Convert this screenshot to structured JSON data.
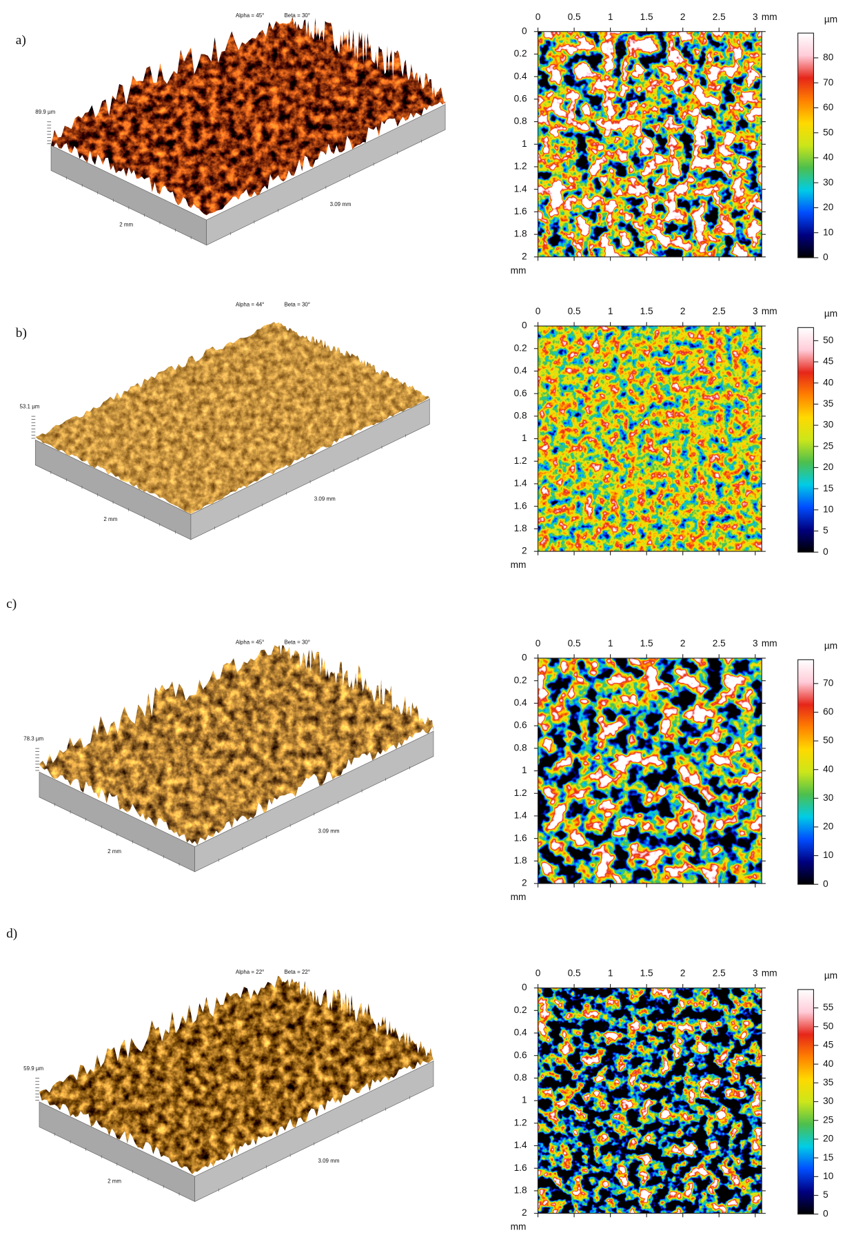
{
  "panels": [
    {
      "label": "a)",
      "view3d": {
        "alpha": "Alpha = 45°",
        "beta": "Beta = 30°",
        "height": "89.9 µm",
        "width": "2 mm",
        "length": "3.09 mm"
      },
      "map": {
        "xticks": [
          0,
          0.5,
          1,
          1.5,
          2,
          2.5,
          3
        ],
        "xlim": [
          0,
          3.09
        ],
        "x_unit": "mm",
        "yticks": [
          0,
          0.2,
          0.4,
          0.6,
          0.8,
          1,
          1.2,
          1.4,
          1.6,
          1.8,
          2
        ],
        "ylim": [
          0,
          2
        ],
        "y_unit": "mm",
        "colorbar_unit": "µm",
        "colorbar_lim": [
          0,
          89.9
        ],
        "colorbar_ticks": [
          0,
          10,
          20,
          30,
          40,
          50,
          60,
          70,
          80
        ]
      }
    },
    {
      "label": "b)",
      "view3d": {
        "alpha": "Alpha = 44°",
        "beta": "Beta = 30°",
        "height": "53.1 µm",
        "width": "2 mm",
        "length": "3.09 mm"
      },
      "map": {
        "xticks": [
          0,
          0.5,
          1,
          1.5,
          2,
          2.5,
          3
        ],
        "xlim": [
          0,
          3.09
        ],
        "x_unit": "mm",
        "yticks": [
          0,
          0.2,
          0.4,
          0.6,
          0.8,
          1,
          1.2,
          1.4,
          1.6,
          1.8,
          2
        ],
        "ylim": [
          0,
          2
        ],
        "y_unit": "mm",
        "colorbar_unit": "µm",
        "colorbar_lim": [
          0,
          53.1
        ],
        "colorbar_ticks": [
          0,
          5,
          10,
          15,
          20,
          25,
          30,
          35,
          40,
          45,
          50
        ]
      }
    },
    {
      "label": "c)",
      "view3d": {
        "alpha": "Alpha = 45°",
        "beta": "Beta = 30°",
        "height": "78.3 µm",
        "width": "2 mm",
        "length": "3.09 mm"
      },
      "map": {
        "xticks": [
          0,
          0.5,
          1,
          1.5,
          2,
          2.5,
          3
        ],
        "xlim": [
          0,
          3.09
        ],
        "x_unit": "mm",
        "yticks": [
          0,
          0.2,
          0.4,
          0.6,
          0.8,
          1,
          1.2,
          1.4,
          1.6,
          1.8,
          2
        ],
        "ylim": [
          0,
          2
        ],
        "y_unit": "mm",
        "colorbar_unit": "µm",
        "colorbar_lim": [
          0,
          78.3
        ],
        "colorbar_ticks": [
          0,
          10,
          20,
          30,
          40,
          50,
          60,
          70
        ]
      }
    },
    {
      "label": "d)",
      "view3d": {
        "alpha": "Alpha = 22°",
        "beta": "Beta = 22°",
        "height": "59.9 µm",
        "width": "2 mm",
        "length": "3.09 mm"
      },
      "map": {
        "xticks": [
          0,
          0.5,
          1,
          1.5,
          2,
          2.5,
          3
        ],
        "xlim": [
          0,
          3.09
        ],
        "x_unit": "mm",
        "yticks": [
          0,
          0.2,
          0.4,
          0.6,
          0.8,
          1,
          1.2,
          1.4,
          1.6,
          1.8,
          2
        ],
        "ylim": [
          0,
          2
        ],
        "y_unit": "mm",
        "colorbar_unit": "µm",
        "colorbar_lim": [
          0,
          59.9
        ],
        "colorbar_ticks": [
          0,
          5,
          10,
          15,
          20,
          25,
          30,
          35,
          40,
          45,
          50,
          55
        ]
      }
    }
  ]
}
